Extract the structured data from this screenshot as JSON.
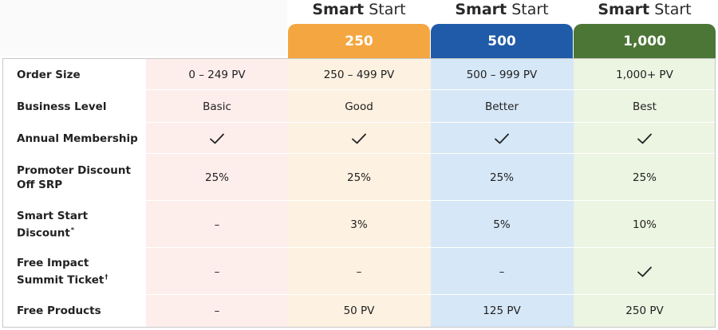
{
  "plans": [
    {
      "bold": "Smart",
      "regular": "Start",
      "tab_label": "250",
      "tab_color": "#f4a640",
      "col_bg": "#fdf1e1"
    },
    {
      "bold": "Smart",
      "regular": "Start",
      "tab_label": "500",
      "tab_color": "#1f5ba8",
      "col_bg": "#d6e7f7"
    },
    {
      "bold": "Smart",
      "regular": "Start",
      "tab_label": "1,000",
      "tab_color": "#4c7636",
      "col_bg": "#ecf4e2"
    }
  ],
  "first_col_bg": "#fdeeec",
  "rows": [
    {
      "label": "Order Size",
      "sup": "",
      "values": [
        "0 – 249 PV",
        "250 – 499 PV",
        "500 – 999 PV",
        "1,000+ PV"
      ]
    },
    {
      "label": "Business Level",
      "sup": "",
      "values": [
        "Basic",
        "Good",
        "Better",
        "Best"
      ]
    },
    {
      "label": "Annual Membership",
      "sup": "",
      "values": [
        "✓",
        "✓",
        "✓",
        "✓"
      ]
    },
    {
      "label": "Promoter Discount Off SRP",
      "sup": "",
      "values": [
        "25%",
        "25%",
        "25%",
        "25%"
      ]
    },
    {
      "label": "Smart Start Discount",
      "sup": "*",
      "values": [
        "–",
        "3%",
        "5%",
        "10%"
      ]
    },
    {
      "label": "Free Impact Summit Ticket",
      "sup": "†",
      "values": [
        "–",
        "–",
        "–",
        "✓"
      ]
    },
    {
      "label": "Free Products",
      "sup": "",
      "values": [
        "–",
        "50 PV",
        "125 PV",
        "250 PV"
      ]
    }
  ]
}
